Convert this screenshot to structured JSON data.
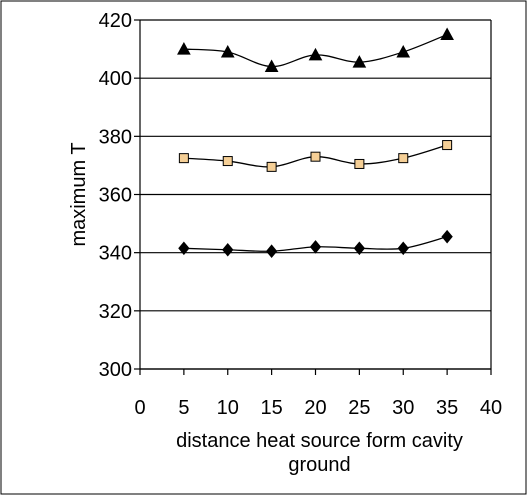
{
  "chart_data": {
    "type": "scatter",
    "title": "",
    "xlabel_lines": [
      "distance heat source form cavity",
      "ground"
    ],
    "ylabel": "maximum T",
    "xlim": [
      0,
      40
    ],
    "ylim": [
      300,
      420
    ],
    "x_ticks": [
      "0",
      "5",
      "10",
      "15",
      "20",
      "25",
      "30",
      "35",
      "40"
    ],
    "y_ticks": [
      "300",
      "320",
      "340",
      "360",
      "380",
      "400",
      "420"
    ],
    "grid": "horizontal",
    "legend": "none",
    "smoothed_lines": true,
    "series": [
      {
        "marker": "triangle",
        "marker_color": "#000000",
        "line_color": "#000000",
        "x": [
          5,
          10,
          15,
          20,
          25,
          30,
          35
        ],
        "y": [
          410,
          409,
          404,
          408,
          405.5,
          409,
          415
        ]
      },
      {
        "marker": "square",
        "marker_color": "#F5CF96",
        "line_color": "#000000",
        "x": [
          5,
          10,
          15,
          20,
          25,
          30,
          35
        ],
        "y": [
          372.5,
          371.5,
          369.5,
          373,
          370.5,
          372.5,
          377
        ]
      },
      {
        "marker": "diamond",
        "marker_color": "#000000",
        "line_color": "#000000",
        "x": [
          5,
          10,
          15,
          20,
          25,
          30,
          35
        ],
        "y": [
          341.5,
          341,
          340.5,
          342,
          341.5,
          341.5,
          345.5
        ]
      }
    ]
  }
}
